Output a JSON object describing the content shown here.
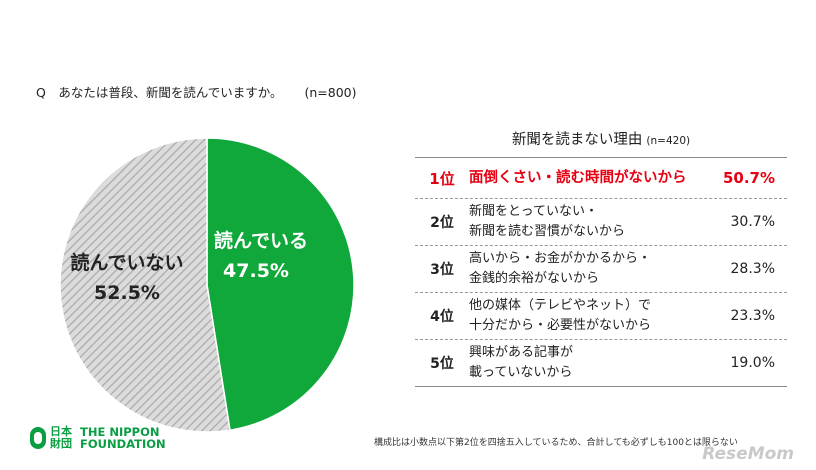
{
  "question": {
    "text": "Q　あなたは普段、新聞を読んでいますか。",
    "n": "(n=800)"
  },
  "chart_data": [
    {
      "type": "pie",
      "slices": [
        {
          "label": "読んでいる",
          "value": 47.5,
          "display": "47.5%",
          "color": "#10a83a",
          "pattern": "solid"
        },
        {
          "label": "読んでいない",
          "value": 52.5,
          "display": "52.5%",
          "color": "#cfcfcf",
          "pattern": "hatched"
        }
      ],
      "start": "12 o'clock",
      "direction": "clockwise"
    },
    {
      "type": "table",
      "title": "新聞を読まない理由",
      "n": "(n=420)",
      "rows": [
        {
          "rank": "1位",
          "reason": [
            "面倒くさい・読む時間がないから"
          ],
          "percent": "50.7%",
          "value": 50.7,
          "highlight": true
        },
        {
          "rank": "2位",
          "reason": [
            "新聞をとっていない・",
            "新聞を読む習慣がないから"
          ],
          "percent": "30.7%",
          "value": 30.7
        },
        {
          "rank": "3位",
          "reason": [
            "高いから・お金がかかるから・",
            "金銭的余裕がないから"
          ],
          "percent": "28.3%",
          "value": 28.3
        },
        {
          "rank": "4位",
          "reason": [
            "他の媒体（テレビやネット）で",
            "十分だから・必要性がないから"
          ],
          "percent": "23.3%",
          "value": 23.3
        },
        {
          "rank": "5位",
          "reason": [
            "興味がある記事が",
            "載っていないから"
          ],
          "percent": "19.0%",
          "value": 19.0
        }
      ],
      "highlight_color": "#e60012"
    }
  ],
  "logo": {
    "jp_line1": "日本",
    "jp_line2": "財団",
    "en_line1": "THE NIPPON",
    "en_line2": "FOUNDATION"
  },
  "footnote": "構成比は小数点以下第2位を四捨五入しているため、合計しても必ずしも100とは限らない",
  "watermark": "ReseMom"
}
